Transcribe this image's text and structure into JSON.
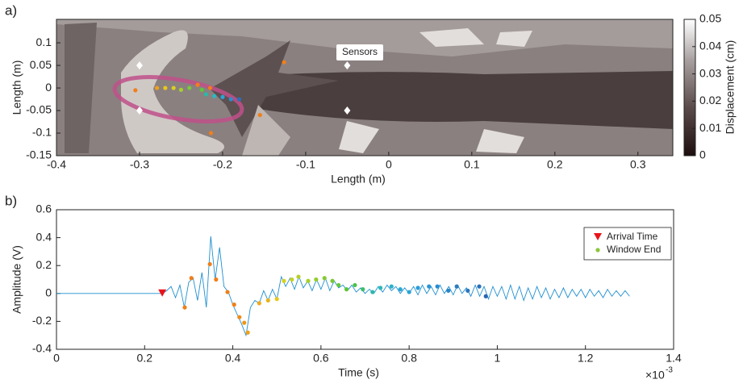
{
  "chart_data": [
    {
      "type": "scatter",
      "panel_label": "a)",
      "xlabel": "Length (m)",
      "ylabel": "Length (m)",
      "xlim": [
        -0.4,
        0.342
      ],
      "ylim": [
        -0.15,
        0.152
      ],
      "xticks": [
        -0.4,
        -0.3,
        -0.2,
        -0.1,
        0,
        0.1,
        0.2,
        0.3
      ],
      "yticks": [
        -0.15,
        -0.1,
        -0.05,
        0,
        0.05,
        0.1
      ],
      "annotation": "Sensors",
      "colorbar": {
        "label": "Displacement (cm)",
        "lim": [
          0,
          0.05
        ],
        "ticks": [
          0,
          0.01,
          0.02,
          0.03,
          0.04,
          0.05
        ]
      },
      "series": [
        {
          "marker": "diamond",
          "color": "#ffffff",
          "x": [
            -0.3,
            -0.3,
            -0.05,
            -0.05
          ],
          "values": [
            0.05,
            -0.05,
            0.05,
            -0.05
          ]
        },
        {
          "marker": "circle",
          "x": [
            -0.126,
            -0.155,
            -0.214,
            -0.305,
            -0.279,
            -0.269,
            -0.259,
            -0.25,
            -0.24,
            -0.23,
            -0.225,
            -0.215,
            -0.22,
            -0.21,
            -0.2,
            -0.19,
            -0.18
          ],
          "values": [
            0.057,
            -0.06,
            -0.1,
            -0.005,
            0,
            0,
            0,
            -0.004,
            0,
            0.007,
            -0.004,
            0,
            -0.014,
            -0.018,
            -0.02,
            -0.025,
            -0.025
          ],
          "colors": [
            "#f07f1a",
            "#f07f1a",
            "#f07f1a",
            "#f07f1a",
            "#f0a01a",
            "#e8c81a",
            "#d8d020",
            "#a6cf2a",
            "#7cc83a",
            "#f07f1a",
            "#5cc63a",
            "#f07f1a",
            "#2cb8a8",
            "#2cb8c0",
            "#2aa5d8",
            "#2a8fd0",
            "#2a6fb8"
          ]
        }
      ]
    },
    {
      "type": "line",
      "panel_label": "b)",
      "xlabel": "Time (s)",
      "ylabel": "Amplitude (V)",
      "x_multiplier": "×10",
      "x_multiplier_exponent": "-3",
      "xlim": [
        0,
        1.4
      ],
      "ylim": [
        -0.4,
        0.6
      ],
      "xticks": [
        0,
        0.2,
        0.4,
        0.6,
        0.8,
        1,
        1.2,
        1.4
      ],
      "yticks": [
        -0.4,
        -0.2,
        0,
        0.2,
        0.4,
        0.6
      ],
      "series": [
        {
          "marker": "line",
          "color": "#1f8fcf",
          "x": [
            0,
            0.01,
            0.02,
            0.03,
            0.04,
            0.05,
            0.06,
            0.07,
            0.08,
            0.09,
            0.1,
            0.11,
            0.12,
            0.13,
            0.14,
            0.15,
            0.16,
            0.17,
            0.18,
            0.19,
            0.2,
            0.21,
            0.22,
            0.23,
            0.24,
            0.25,
            0.26,
            0.27,
            0.28,
            0.29,
            0.3,
            0.31,
            0.32,
            0.33,
            0.34,
            0.35,
            0.36,
            0.37,
            0.38,
            0.39,
            0.4,
            0.41,
            0.42,
            0.43,
            0.44,
            0.45,
            0.46,
            0.47,
            0.48,
            0.49,
            0.5,
            0.51,
            0.52,
            0.53,
            0.54,
            0.55,
            0.56,
            0.57,
            0.58,
            0.59,
            0.6,
            0.61,
            0.62,
            0.63,
            0.64,
            0.65,
            0.66,
            0.67,
            0.68,
            0.69,
            0.7,
            0.71,
            0.72,
            0.73,
            0.74,
            0.75,
            0.76,
            0.77,
            0.78,
            0.79,
            0.8,
            0.81,
            0.82,
            0.83,
            0.84,
            0.85,
            0.86,
            0.87,
            0.88,
            0.89,
            0.9,
            0.91,
            0.92,
            0.93,
            0.94,
            0.95,
            0.96,
            0.97,
            0.98,
            0.99,
            1,
            1.01,
            1.02,
            1.03,
            1.04,
            1.05,
            1.06,
            1.07,
            1.08,
            1.09,
            1.1,
            1.11,
            1.12,
            1.13,
            1.14,
            1.15,
            1.16,
            1.17,
            1.18,
            1.19,
            1.2,
            1.21,
            1.22,
            1.23,
            1.24,
            1.25,
            1.26,
            1.27,
            1.28,
            1.29,
            1.3
          ],
          "values": [
            0,
            0,
            0,
            0,
            0,
            0,
            0,
            0,
            0,
            0,
            0,
            0,
            0,
            0,
            0,
            0,
            0,
            0,
            0,
            0,
            0,
            0,
            0,
            0,
            0,
            0.02,
            0.05,
            -0.03,
            0.06,
            -0.1,
            0.08,
            0.11,
            -0.05,
            0.15,
            -0.1,
            0.41,
            0.1,
            0.33,
            0.05,
            0.01,
            -0.08,
            -0.15,
            -0.22,
            -0.3,
            -0.1,
            -0.05,
            -0.07,
            0.02,
            -0.05,
            0.03,
            -0.04,
            0.12,
            0.05,
            0.11,
            0.03,
            0.12,
            0.04,
            0.09,
            0.02,
            0.1,
            0.03,
            0.11,
            0.02,
            0.09,
            0.04,
            0.06,
            0.02,
            0.06,
            0.01,
            0.04,
            0,
            0.03,
            0,
            0.05,
            0.01,
            0.06,
            0.02,
            0.05,
            0,
            0.04,
            0,
            0.05,
            -0.01,
            0.06,
            0,
            0.05,
            -0.01,
            0.06,
            0,
            0.05,
            -0.01,
            0.06,
            0,
            0.04,
            -0.02,
            0.06,
            -0.02,
            0.05,
            -0.04,
            0.05,
            -0.02,
            0.05,
            -0.04,
            0.06,
            -0.04,
            0.05,
            -0.05,
            0.04,
            -0.04,
            0.05,
            -0.03,
            0.04,
            -0.04,
            0.03,
            -0.03,
            0.04,
            -0.03,
            0.03,
            -0.02,
            0.03,
            -0.03,
            0.03,
            -0.02,
            0.02,
            -0.03,
            0.03,
            -0.02,
            0.02,
            -0.02,
            0.02,
            -0.02
          ]
        },
        {
          "name": "Arrival Time",
          "marker": "triangle",
          "color": "#e8141a",
          "x": [
            0.24
          ],
          "values": [
            0
          ]
        },
        {
          "name": "Window End",
          "marker": "circle",
          "color": "#8cc63a",
          "x": [
            0.291,
            0.306,
            0.348,
            0.362,
            0.388,
            0.403,
            0.415,
            0.426,
            0.434,
            0.46,
            0.48,
            0.5,
            0.516,
            0.534,
            0.549,
            0.571,
            0.589,
            0.608,
            0.626,
            0.64,
            0.658,
            0.677,
            0.695,
            0.717,
            0.735,
            0.76,
            0.78,
            0.8,
            0.82,
            0.845,
            0.864,
            0.889,
            0.908,
            0.933,
            0.959,
            0.974
          ],
          "values": [
            -0.1,
            0.11,
            0.21,
            0.1,
            0.01,
            -0.08,
            -0.17,
            -0.21,
            -0.28,
            -0.07,
            -0.05,
            -0.04,
            0.09,
            0.1,
            0.12,
            0.09,
            0.1,
            0.11,
            0.09,
            0.06,
            0.03,
            0.06,
            0.03,
            0.01,
            0.04,
            0.05,
            0.03,
            0.01,
            0.04,
            0.05,
            0.05,
            0.02,
            0.05,
            0.02,
            0.05,
            -0.02
          ],
          "colors": [
            "#f07f1a",
            "#f07f1a",
            "#f07f1a",
            "#f07f1a",
            "#f07f1a",
            "#f07f1a",
            "#f08a1a",
            "#f0961a",
            "#f0a01a",
            "#f0aa1a",
            "#e8b41a",
            "#e8c81a",
            "#d8d020",
            "#c8d024",
            "#b8cf28",
            "#a6cf2a",
            "#96cc2e",
            "#86ca32",
            "#76c836",
            "#66c63a",
            "#5cc63a",
            "#4cc24a",
            "#3cbe6a",
            "#2cb8a8",
            "#2cb8b8",
            "#2cb0c8",
            "#2aa8d4",
            "#2aa5d8",
            "#2a9cd8",
            "#2a94d4",
            "#2a8cd0",
            "#2a84c8",
            "#2a7cc0",
            "#2a74bc",
            "#2a6fb8",
            "#2a64b0"
          ]
        }
      ]
    }
  ]
}
